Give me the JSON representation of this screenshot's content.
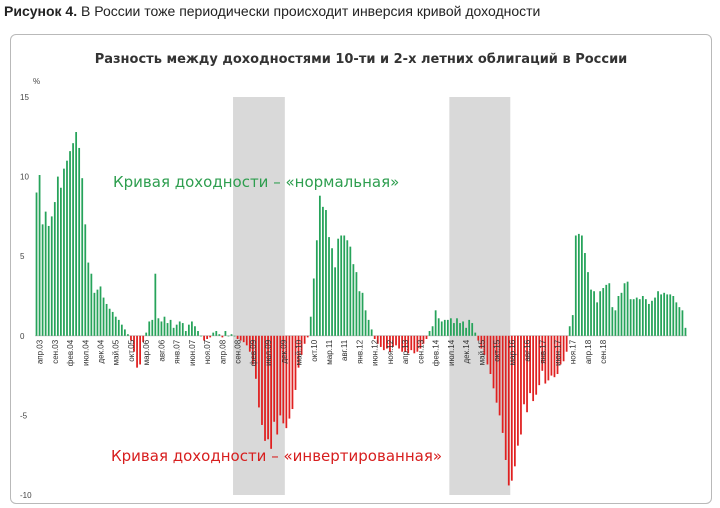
{
  "figure": {
    "label": "Рисунок 4.",
    "text": "В России тоже периодически происходит инверсия кривой доходности"
  },
  "chart_data": {
    "type": "bar",
    "title": "Разность между доходностями 10-ти и 2-х летних облигаций в России",
    "ylabel": "%",
    "ylim": [
      -10,
      15
    ],
    "yticks": [
      15,
      10,
      5,
      0,
      -5,
      -10
    ],
    "grid": false,
    "x_range": [
      "2003-03",
      "2018-09"
    ],
    "tick_labels": [
      "апр.03",
      "сен.03",
      "фев.04",
      "июл.04",
      "дек.04",
      "май.05",
      "окт.05",
      "мар.06",
      "авг.06",
      "янв.07",
      "июн.07",
      "ноя.07",
      "апр.08",
      "сен.08",
      "фев.09",
      "июл.09",
      "дек.09",
      "май.10",
      "окт.10",
      "мар.11",
      "авг.11",
      "янв.12",
      "июн.12",
      "ноя.12",
      "апр.13",
      "сен.13",
      "фев.14",
      "июл.14",
      "дек.14",
      "май.15",
      "окт.15",
      "мар.16",
      "авг.16",
      "янв.17",
      "июн.17",
      "ноя.17",
      "апр.18",
      "сен.18"
    ],
    "shaded_periods": [
      {
        "start": "2008-08",
        "end": "2009-12"
      },
      {
        "start": "2014-07",
        "end": "2016-02"
      }
    ],
    "positive_color": "#26a35a",
    "negative_color": "#e02020",
    "shade_color": "#d9d9d9",
    "annotations": [
      {
        "text": "Кривая доходности – «нормальная»",
        "color": "#2e9e4f"
      },
      {
        "text": "Кривая доходности – «инвертированная»",
        "color": "#d71e1e"
      }
    ],
    "values": [
      9.0,
      10.1,
      7.0,
      7.8,
      6.9,
      7.5,
      8.4,
      10.0,
      9.3,
      10.5,
      11.0,
      11.6,
      12.1,
      12.8,
      11.8,
      9.9,
      7.0,
      4.6,
      3.9,
      2.7,
      2.9,
      3.1,
      2.4,
      2.0,
      1.7,
      1.5,
      1.2,
      1.0,
      0.7,
      0.4,
      0.1,
      -0.3,
      -1.0,
      -2.0,
      -1.8,
      -0.4,
      0.2,
      0.9,
      1.0,
      3.9,
      1.1,
      0.9,
      1.2,
      0.8,
      1.0,
      0.5,
      0.7,
      0.9,
      0.8,
      0.3,
      0.7,
      0.9,
      0.6,
      0.3,
      0.0,
      -0.3,
      -0.2,
      -0.1,
      0.2,
      0.3,
      0.1,
      -0.1,
      0.3,
      0.0,
      0.1,
      0.0,
      -0.2,
      -0.3,
      -0.4,
      -0.6,
      -1.0,
      -1.8,
      -2.7,
      -4.5,
      -5.6,
      -6.6,
      -6.5,
      -7.1,
      -5.4,
      -6.2,
      -5.0,
      -5.5,
      -5.8,
      -5.2,
      -4.6,
      -3.4,
      -2.0,
      -1.2,
      -0.5,
      -0.1,
      1.2,
      3.6,
      6.0,
      8.8,
      8.1,
      7.9,
      6.2,
      5.5,
      4.3,
      6.1,
      6.3,
      6.3,
      6.0,
      5.6,
      4.5,
      4.0,
      2.8,
      2.7,
      1.6,
      1.0,
      0.4,
      -0.2,
      -0.5,
      -0.7,
      -0.9,
      -0.8,
      -1.0,
      -0.7,
      -0.6,
      -0.8,
      -1.0,
      -1.0,
      -1.1,
      -0.9,
      -1.1,
      -1.0,
      -0.8,
      -0.5,
      -0.2,
      0.3,
      0.6,
      1.6,
      1.1,
      0.9,
      1.0,
      1.0,
      1.1,
      0.8,
      1.1,
      0.8,
      0.9,
      0.5,
      1.0,
      0.8,
      0.2,
      -0.3,
      -0.8,
      -1.2,
      -1.8,
      -2.4,
      -3.3,
      -4.2,
      -5.0,
      -6.1,
      -7.8,
      -9.4,
      -9.1,
      -8.2,
      -6.9,
      -6.2,
      -4.3,
      -4.8,
      -3.6,
      -4.1,
      -3.7,
      -3.1,
      -2.2,
      -3.0,
      -2.8,
      -2.5,
      -2.6,
      -2.4,
      -1.8,
      -1.6,
      -1.0,
      0.6,
      1.3,
      6.3,
      6.4,
      6.3,
      5.2,
      4.0,
      2.9,
      2.8,
      2.1,
      2.8,
      3.0,
      3.2,
      3.3,
      1.8,
      1.6,
      2.5,
      2.7,
      3.3,
      3.4,
      2.3,
      2.3,
      2.4,
      2.3,
      2.5,
      2.3,
      2.0,
      2.2,
      2.4,
      2.8,
      2.6,
      2.7,
      2.6,
      2.6,
      2.5,
      2.1,
      1.8,
      1.6,
      0.5
    ]
  }
}
